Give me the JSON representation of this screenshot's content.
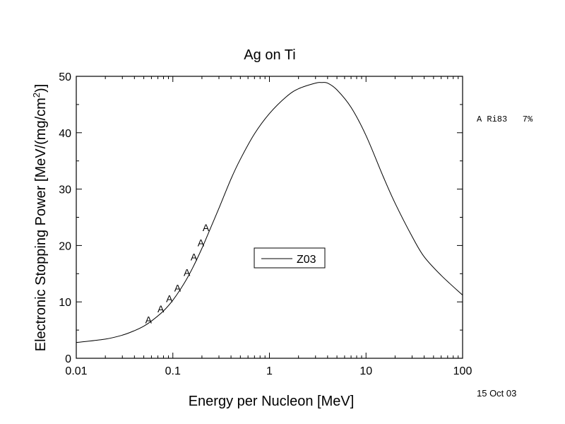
{
  "chart_data": {
    "type": "line",
    "title": "Ag on Ti",
    "xlabel": "Energy per Nucleon [MeV]",
    "ylabel_main": "Electronic Stopping Power [MeV/(mg/cm",
    "ylabel_sup": "2",
    "ylabel_end": ")]",
    "x_scale": "log",
    "xlim": [
      0.01,
      100
    ],
    "ylim": [
      0,
      50
    ],
    "x_ticks": [
      0.01,
      0.1,
      1,
      10,
      100
    ],
    "x_tick_labels": [
      "0.01",
      "0.1",
      "1",
      "10",
      "100"
    ],
    "y_ticks": [
      0,
      10,
      20,
      30,
      40,
      50
    ],
    "y_tick_labels": [
      "0",
      "10",
      "20",
      "30",
      "40",
      "50"
    ],
    "legend_position": "center",
    "series": [
      {
        "name": "Z03",
        "style": "line",
        "color": "#000000",
        "x": [
          0.01,
          0.02,
          0.03,
          0.04,
          0.05,
          0.06,
          0.08,
          0.1,
          0.13,
          0.16,
          0.2,
          0.25,
          0.3,
          0.4,
          0.5,
          0.7,
          1.0,
          1.5,
          2.0,
          3.0,
          3.5,
          4.0,
          5.0,
          7.0,
          10.0,
          15.0,
          20.0,
          30.0,
          40.0,
          60.0,
          100.0
        ],
        "y": [
          2.8,
          3.4,
          4.1,
          4.9,
          5.7,
          6.6,
          8.4,
          10.3,
          13.2,
          16.0,
          19.5,
          23.4,
          26.6,
          31.8,
          35.3,
          39.8,
          43.4,
          46.4,
          47.8,
          48.8,
          48.9,
          48.8,
          47.6,
          44.5,
          39.5,
          32.3,
          27.5,
          21.6,
          18.0,
          14.7,
          11.2
        ]
      },
      {
        "name": "A",
        "style": "marker",
        "marker_symbol": "A",
        "x": [
          0.056,
          0.075,
          0.092,
          0.112,
          0.14,
          0.165,
          0.195,
          0.22
        ],
        "y": [
          6.8,
          8.8,
          10.6,
          12.5,
          15.2,
          18.0,
          20.5,
          23.2
        ]
      }
    ]
  },
  "reference_note": "A Ri83   7%",
  "date": "15 Oct 03"
}
